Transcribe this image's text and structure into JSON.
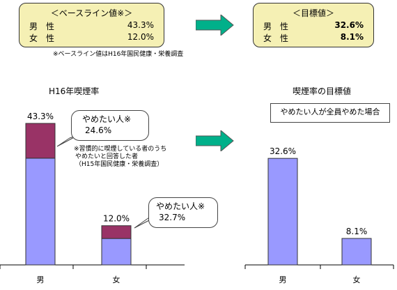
{
  "baseline_box": {
    "header": "＜ベースライン値※＞",
    "rows": [
      {
        "sex": "男性",
        "value": "43.3%"
      },
      {
        "sex": "女性",
        "value": "12.0%"
      }
    ],
    "note": "※ベースライン値はH16年国民健康・栄養調査"
  },
  "target_box": {
    "header": "＜目標値＞",
    "rows": [
      {
        "sex": "男性",
        "value": "32.6%"
      },
      {
        "sex": "女性",
        "value": "8.1%"
      }
    ]
  },
  "colors": {
    "box_fill": "#f5f0b4",
    "arrow": "#00b08a",
    "bar_total": "#9999ff",
    "bar_quit": "#993366"
  },
  "callouts": {
    "male": {
      "line1": "やめたい人※",
      "line2": "24.6%"
    },
    "female": {
      "line1": "やめたい人※",
      "line2": "32.7%"
    },
    "footnote": [
      "※習慣的に喫煙している者のうち",
      "やめたいと回答した者",
      "（H15年国民健康・栄養調査）"
    ]
  },
  "condition_label": "やめたい人が全員やめた場合",
  "chart_data": [
    {
      "type": "bar",
      "title": "H16年喫煙率",
      "categories": [
        "男",
        "女"
      ],
      "value_labels": [
        "43.3%",
        "12.0%"
      ],
      "series": [
        {
          "values": [
            32.65,
            8.08
          ]
        },
        {
          "name": "やめたい人",
          "values": [
            10.65,
            3.92
          ]
        }
      ],
      "ylim": [
        0,
        50
      ]
    },
    {
      "type": "bar",
      "title": "喫煙率の目標値",
      "categories": [
        "男",
        "女"
      ],
      "value_labels": [
        "32.6%",
        "8.1%"
      ],
      "series": [
        {
          "values": [
            32.6,
            8.1
          ]
        }
      ],
      "ylim": [
        0,
        50
      ]
    }
  ]
}
